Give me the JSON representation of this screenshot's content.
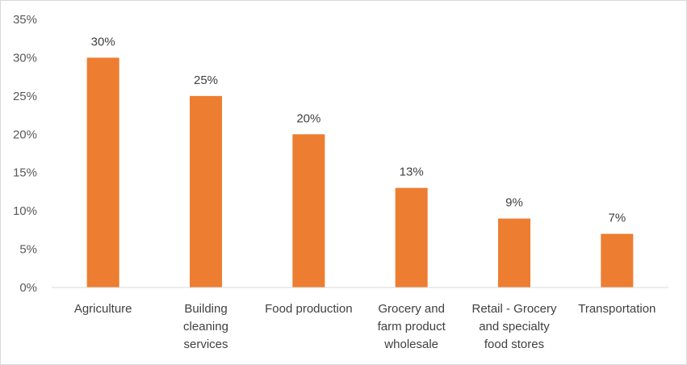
{
  "chart_data": {
    "type": "bar",
    "title": "",
    "xlabel": "",
    "ylabel": "",
    "categories": [
      [
        "Agriculture"
      ],
      [
        "Building",
        "cleaning",
        "services"
      ],
      [
        "Food production"
      ],
      [
        "Grocery and",
        "farm product",
        "wholesale"
      ],
      [
        "Retail - Grocery",
        "and specialty",
        "food stores"
      ],
      [
        "Transportation"
      ]
    ],
    "values": [
      30,
      25,
      20,
      13,
      9,
      7
    ],
    "data_labels": [
      "30%",
      "25%",
      "20%",
      "13%",
      "9%",
      "7%"
    ],
    "ylim": [
      0,
      35
    ],
    "yticks": [
      0,
      5,
      10,
      15,
      20,
      25,
      30,
      35
    ],
    "ytick_labels": [
      "0%",
      "5%",
      "10%",
      "15%",
      "20%",
      "25%",
      "30%",
      "35%"
    ],
    "grid": false,
    "legend": "none",
    "bar_color": "#ED7D31",
    "axis_color": "#d9d9d9"
  }
}
